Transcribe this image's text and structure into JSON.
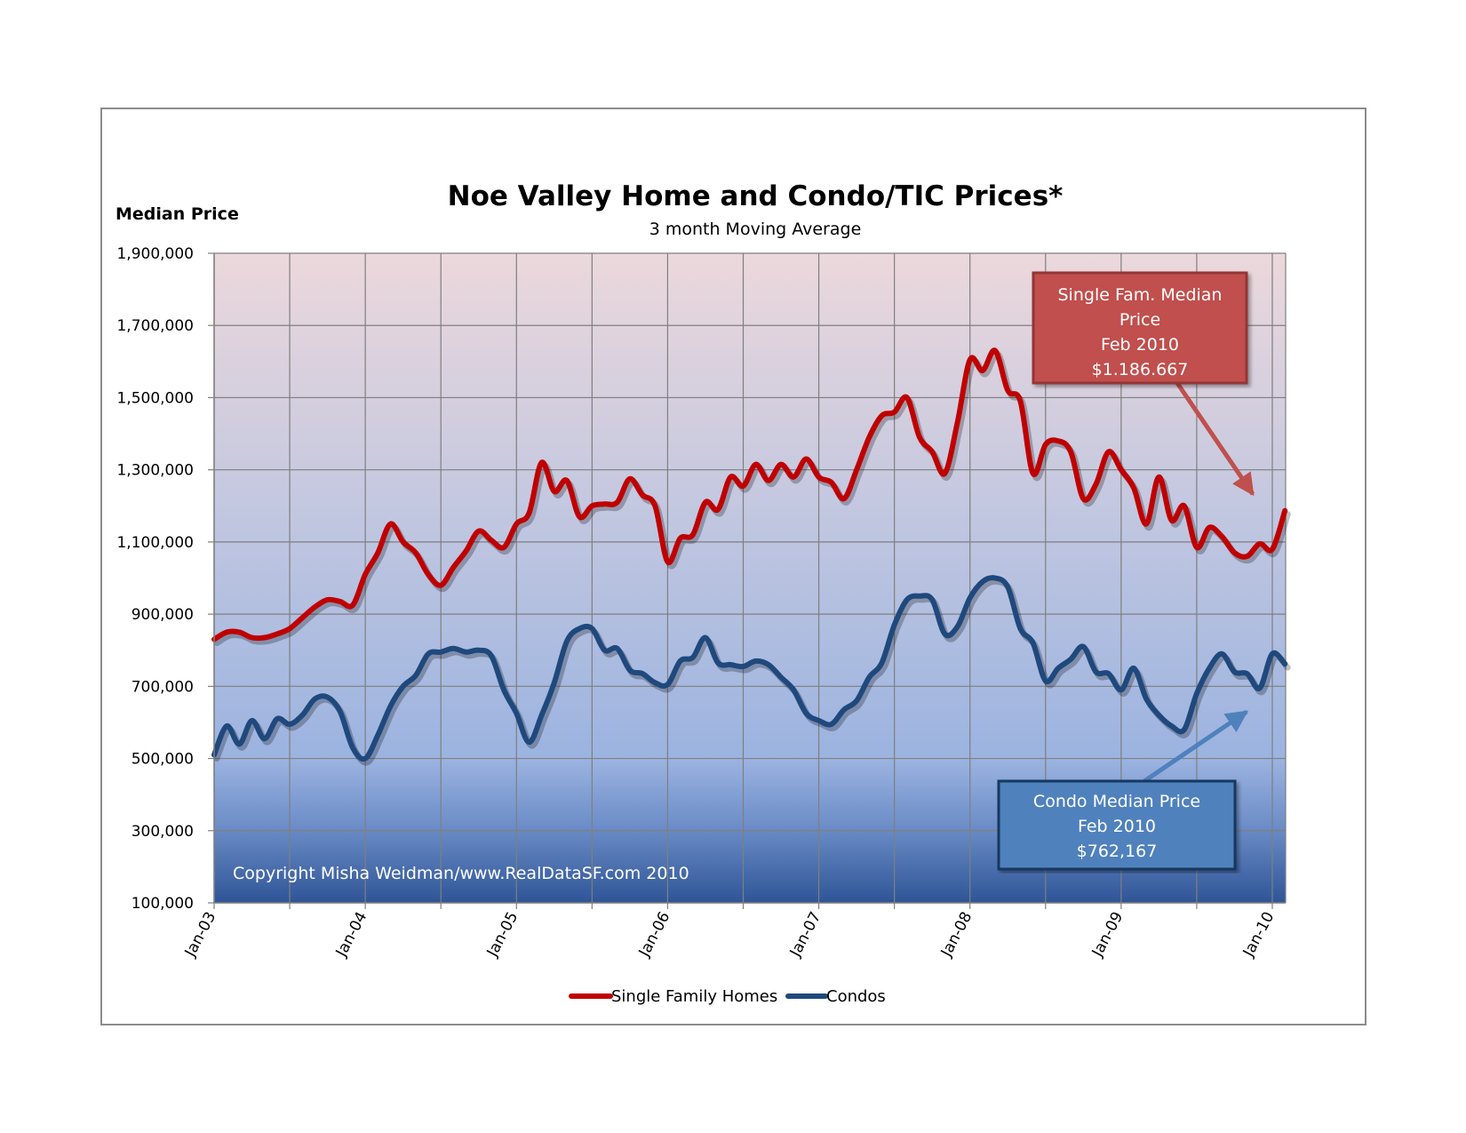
{
  "chart_data": {
    "type": "line",
    "title": "Noe Valley Home and Condo/TIC Prices*",
    "subtitle": "3 month Moving Average",
    "ylabel": "Median Price",
    "ylim": [
      100000,
      1900000
    ],
    "yticks": [
      100000,
      300000,
      500000,
      700000,
      900000,
      1100000,
      1300000,
      1500000,
      1700000,
      1900000
    ],
    "ytick_labels": [
      "100,000",
      "300,000",
      "500,000",
      "700,000",
      "900,000",
      "1,100,000",
      "1,300,000",
      "1,500,000",
      "1,700,000",
      "1,900,000"
    ],
    "xlim": [
      "2003-01",
      "2010-02"
    ],
    "xtick_labels": [
      "Jan-03",
      "Jan-04",
      "Jan-05",
      "Jan-06",
      "Jan-07",
      "Jan-08",
      "Jan-09",
      "Jan-10"
    ],
    "grid": true,
    "legend_position": "bottom-center",
    "x": [
      "2003-01",
      "2003-02",
      "2003-03",
      "2003-04",
      "2003-05",
      "2003-06",
      "2003-07",
      "2003-08",
      "2003-09",
      "2003-10",
      "2003-11",
      "2003-12",
      "2004-01",
      "2004-02",
      "2004-03",
      "2004-04",
      "2004-05",
      "2004-06",
      "2004-07",
      "2004-08",
      "2004-09",
      "2004-10",
      "2004-11",
      "2004-12",
      "2005-01",
      "2005-02",
      "2005-03",
      "2005-04",
      "2005-05",
      "2005-06",
      "2005-07",
      "2005-08",
      "2005-09",
      "2005-10",
      "2005-11",
      "2005-12",
      "2006-01",
      "2006-02",
      "2006-03",
      "2006-04",
      "2006-05",
      "2006-06",
      "2006-07",
      "2006-08",
      "2006-09",
      "2006-10",
      "2006-11",
      "2006-12",
      "2007-01",
      "2007-02",
      "2007-03",
      "2007-04",
      "2007-05",
      "2007-06",
      "2007-07",
      "2007-08",
      "2007-09",
      "2007-10",
      "2007-11",
      "2007-12",
      "2008-01",
      "2008-02",
      "2008-03",
      "2008-04",
      "2008-05",
      "2008-06",
      "2008-07",
      "2008-08",
      "2008-09",
      "2008-10",
      "2008-11",
      "2008-12",
      "2009-01",
      "2009-02",
      "2009-03",
      "2009-04",
      "2009-05",
      "2009-06",
      "2009-07",
      "2009-08",
      "2009-09",
      "2009-10",
      "2009-11",
      "2009-12",
      "2010-01",
      "2010-02"
    ],
    "series": [
      {
        "name": "Single Family Homes",
        "color": "#c00000",
        "values": [
          830000,
          850000,
          850000,
          835000,
          835000,
          845000,
          860000,
          890000,
          920000,
          940000,
          935000,
          925000,
          1010000,
          1070000,
          1150000,
          1100000,
          1070000,
          1010000,
          980000,
          1030000,
          1075000,
          1130000,
          1105000,
          1085000,
          1150000,
          1180000,
          1320000,
          1240000,
          1270000,
          1170000,
          1200000,
          1205000,
          1210000,
          1275000,
          1230000,
          1200000,
          1045000,
          1110000,
          1120000,
          1210000,
          1190000,
          1280000,
          1255000,
          1315000,
          1270000,
          1315000,
          1280000,
          1330000,
          1280000,
          1265000,
          1220000,
          1300000,
          1390000,
          1450000,
          1460000,
          1500000,
          1390000,
          1350000,
          1290000,
          1430000,
          1605000,
          1575000,
          1630000,
          1520000,
          1490000,
          1290000,
          1370000,
          1380000,
          1350000,
          1220000,
          1260000,
          1350000,
          1300000,
          1250000,
          1150000,
          1280000,
          1160000,
          1200000,
          1085000,
          1140000,
          1115000,
          1070000,
          1060000,
          1095000,
          1080000,
          1186667
        ]
      },
      {
        "name": "Condos",
        "color": "#1f497d",
        "values": [
          510000,
          590000,
          540000,
          605000,
          555000,
          610000,
          595000,
          620000,
          665000,
          670000,
          630000,
          530000,
          500000,
          565000,
          645000,
          700000,
          730000,
          790000,
          795000,
          805000,
          795000,
          800000,
          785000,
          690000,
          625000,
          545000,
          620000,
          710000,
          825000,
          860000,
          860000,
          800000,
          805000,
          745000,
          735000,
          710000,
          705000,
          770000,
          780000,
          835000,
          765000,
          760000,
          755000,
          770000,
          760000,
          725000,
          690000,
          625000,
          605000,
          595000,
          635000,
          660000,
          725000,
          765000,
          870000,
          940000,
          950000,
          940000,
          845000,
          865000,
          945000,
          990000,
          1000000,
          975000,
          860000,
          820000,
          715000,
          750000,
          775000,
          810000,
          740000,
          735000,
          690000,
          750000,
          665000,
          620000,
          590000,
          580000,
          680000,
          750000,
          790000,
          740000,
          735000,
          695000,
          790000,
          762167
        ]
      }
    ],
    "annotations": [
      {
        "lines": [
          "Single Fam. Median",
          "Price",
          "Feb 2010",
          "$1.186.667"
        ],
        "fill": "#c0504d",
        "border": "#943634",
        "arrow_color": "#c0504d"
      },
      {
        "lines": [
          "Condo Median Price",
          "Feb 2010",
          "$762,167"
        ],
        "fill": "#4f81bd",
        "border": "#17375e",
        "arrow_color": "#4f81bd"
      }
    ],
    "copyright": "Copyright Misha Weidman/www.RealDataSF.com 2010"
  }
}
